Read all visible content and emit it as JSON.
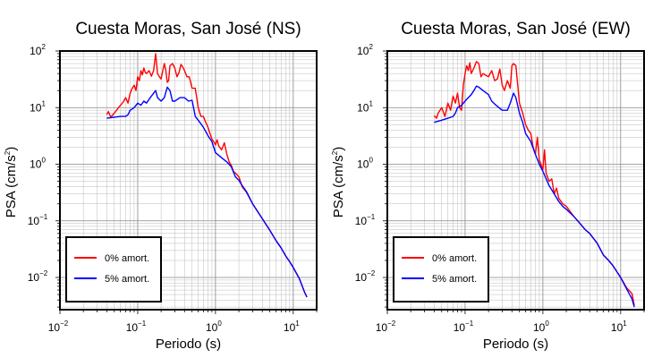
{
  "chart_data": [
    {
      "type": "line",
      "title": "Cuesta Moras, San José (NS)",
      "xlabel": "Periodo (s)",
      "ylabel_main": "PSA (cm/s",
      "ylabel_sup": "2",
      "ylabel_end": ")",
      "x_scale": "log",
      "y_scale": "log",
      "xlim": [
        0.01,
        20
      ],
      "ylim": [
        0.0027,
        100
      ],
      "x_ticks": [
        {
          "base": "10",
          "exp": "−2",
          "value": 0.01
        },
        {
          "base": "10",
          "exp": "−1",
          "value": 0.1
        },
        {
          "base": "10",
          "exp": "0",
          "value": 1
        },
        {
          "base": "10",
          "exp": "1",
          "value": 10
        }
      ],
      "y_ticks": [
        {
          "base": "10",
          "exp": "2",
          "value": 100
        },
        {
          "base": "10",
          "exp": "1",
          "value": 10
        },
        {
          "base": "10",
          "exp": "0",
          "value": 1
        },
        {
          "base": "10",
          "exp": "−1",
          "value": 0.1
        },
        {
          "base": "10",
          "exp": "−2",
          "value": 0.01
        }
      ],
      "grid": true,
      "legend_position": "bottom-left",
      "series": [
        {
          "name": "0% amort.",
          "color": "#ff0000",
          "points": [
            [
              0.04,
              7.5
            ],
            [
              0.042,
              8.5
            ],
            [
              0.045,
              6.8
            ],
            [
              0.05,
              8
            ],
            [
              0.055,
              9.5
            ],
            [
              0.06,
              11
            ],
            [
              0.065,
              12.5
            ],
            [
              0.07,
              15
            ],
            [
              0.075,
              12
            ],
            [
              0.08,
              18
            ],
            [
              0.085,
              22
            ],
            [
              0.09,
              25
            ],
            [
              0.095,
              20
            ],
            [
              0.1,
              35
            ],
            [
              0.105,
              30
            ],
            [
              0.11,
              45
            ],
            [
              0.115,
              38
            ],
            [
              0.12,
              50
            ],
            [
              0.125,
              42
            ],
            [
              0.13,
              40
            ],
            [
              0.14,
              45
            ],
            [
              0.15,
              36
            ],
            [
              0.16,
              45
            ],
            [
              0.17,
              90
            ],
            [
              0.18,
              40
            ],
            [
              0.19,
              35
            ],
            [
              0.2,
              32
            ],
            [
              0.21,
              45
            ],
            [
              0.22,
              60
            ],
            [
              0.23,
              45
            ],
            [
              0.24,
              28
            ],
            [
              0.25,
              30
            ],
            [
              0.26,
              55
            ],
            [
              0.28,
              60
            ],
            [
              0.3,
              50
            ],
            [
              0.32,
              35
            ],
            [
              0.34,
              42
            ],
            [
              0.36,
              58
            ],
            [
              0.38,
              52
            ],
            [
              0.4,
              45
            ],
            [
              0.43,
              35
            ],
            [
              0.46,
              35
            ],
            [
              0.5,
              22
            ],
            [
              0.55,
              22
            ],
            [
              0.6,
              10
            ],
            [
              0.65,
              7
            ],
            [
              0.7,
              7
            ],
            [
              0.75,
              5.5
            ],
            [
              0.8,
              4.5
            ],
            [
              0.85,
              3.5
            ],
            [
              0.9,
              2.8
            ],
            [
              1,
              2.2
            ],
            [
              1.05,
              2.7
            ],
            [
              1.1,
              2.1
            ],
            [
              1.2,
              1.8
            ],
            [
              1.3,
              2.4
            ],
            [
              1.4,
              1.5
            ],
            [
              1.5,
              1.1
            ],
            [
              1.6,
              0.95
            ],
            [
              1.7,
              0.75
            ],
            [
              1.8,
              0.7
            ],
            [
              2,
              0.6
            ],
            [
              2.2,
              0.4
            ],
            [
              2.5,
              0.32
            ],
            [
              3,
              0.2
            ],
            [
              4,
              0.11
            ],
            [
              5,
              0.068
            ],
            [
              6,
              0.045
            ],
            [
              7,
              0.033
            ],
            [
              8,
              0.024
            ],
            [
              9,
              0.019
            ],
            [
              10,
              0.015
            ],
            [
              12,
              0.0095
            ],
            [
              14,
              0.0055
            ],
            [
              15,
              0.0045
            ]
          ]
        },
        {
          "name": "5% amort.",
          "color": "#0000ff",
          "points": [
            [
              0.04,
              6.5
            ],
            [
              0.05,
              6.8
            ],
            [
              0.06,
              7
            ],
            [
              0.07,
              7
            ],
            [
              0.075,
              7.5
            ],
            [
              0.08,
              9
            ],
            [
              0.09,
              10
            ],
            [
              0.1,
              12
            ],
            [
              0.11,
              11
            ],
            [
              0.12,
              13
            ],
            [
              0.13,
              12
            ],
            [
              0.14,
              14
            ],
            [
              0.15,
              16
            ],
            [
              0.17,
              20
            ],
            [
              0.18,
              15
            ],
            [
              0.2,
              13
            ],
            [
              0.22,
              15
            ],
            [
              0.24,
              23
            ],
            [
              0.26,
              20
            ],
            [
              0.28,
              13
            ],
            [
              0.3,
              13
            ],
            [
              0.35,
              15
            ],
            [
              0.4,
              15
            ],
            [
              0.45,
              13
            ],
            [
              0.5,
              13.5
            ],
            [
              0.55,
              7
            ],
            [
              0.6,
              6
            ],
            [
              0.7,
              4.5
            ],
            [
              0.8,
              3.2
            ],
            [
              0.9,
              2.5
            ],
            [
              1,
              1.6
            ],
            [
              1.2,
              1.3
            ],
            [
              1.4,
              1.1
            ],
            [
              1.6,
              0.9
            ],
            [
              1.8,
              0.6
            ],
            [
              2,
              0.52
            ],
            [
              2.2,
              0.42
            ],
            [
              2.5,
              0.33
            ],
            [
              3,
              0.2
            ],
            [
              4,
              0.11
            ],
            [
              5,
              0.068
            ],
            [
              6,
              0.045
            ],
            [
              7,
              0.033
            ],
            [
              8,
              0.024
            ],
            [
              9,
              0.019
            ],
            [
              10,
              0.015
            ],
            [
              12,
              0.0095
            ],
            [
              14,
              0.0055
            ],
            [
              15,
              0.0045
            ]
          ]
        }
      ]
    },
    {
      "type": "line",
      "title": "Cuesta Moras, San José (EW)",
      "xlabel": "Periodo (s)",
      "ylabel_main": "PSA (cm/s",
      "ylabel_sup": "2",
      "ylabel_end": ")",
      "x_scale": "log",
      "y_scale": "log",
      "xlim": [
        0.01,
        20
      ],
      "ylim": [
        0.0027,
        100
      ],
      "x_ticks": [
        {
          "base": "10",
          "exp": "−2",
          "value": 0.01
        },
        {
          "base": "10",
          "exp": "−1",
          "value": 0.1
        },
        {
          "base": "10",
          "exp": "0",
          "value": 1
        },
        {
          "base": "10",
          "exp": "1",
          "value": 10
        }
      ],
      "y_ticks": [
        {
          "base": "10",
          "exp": "2",
          "value": 100
        },
        {
          "base": "10",
          "exp": "1",
          "value": 10
        },
        {
          "base": "10",
          "exp": "0",
          "value": 1
        },
        {
          "base": "10",
          "exp": "−1",
          "value": 0.1
        },
        {
          "base": "10",
          "exp": "−2",
          "value": 0.01
        }
      ],
      "grid": true,
      "legend_position": "bottom-left",
      "series": [
        {
          "name": "0% amort.",
          "color": "#ff0000",
          "points": [
            [
              0.04,
              7.2
            ],
            [
              0.043,
              6.5
            ],
            [
              0.045,
              8
            ],
            [
              0.05,
              10
            ],
            [
              0.055,
              7
            ],
            [
              0.06,
              12
            ],
            [
              0.065,
              9
            ],
            [
              0.07,
              16
            ],
            [
              0.075,
              12
            ],
            [
              0.08,
              18
            ],
            [
              0.085,
              10
            ],
            [
              0.09,
              9
            ],
            [
              0.095,
              25
            ],
            [
              0.1,
              40
            ],
            [
              0.105,
              55
            ],
            [
              0.11,
              45
            ],
            [
              0.115,
              62
            ],
            [
              0.12,
              40
            ],
            [
              0.13,
              50
            ],
            [
              0.14,
              65
            ],
            [
              0.15,
              60
            ],
            [
              0.16,
              35
            ],
            [
              0.17,
              40
            ],
            [
              0.18,
              38
            ],
            [
              0.2,
              35
            ],
            [
              0.22,
              45
            ],
            [
              0.24,
              30
            ],
            [
              0.26,
              32
            ],
            [
              0.28,
              48
            ],
            [
              0.3,
              25
            ],
            [
              0.32,
              20
            ],
            [
              0.35,
              30
            ],
            [
              0.38,
              22
            ],
            [
              0.4,
              55
            ],
            [
              0.42,
              60
            ],
            [
              0.45,
              55
            ],
            [
              0.5,
              12
            ],
            [
              0.55,
              8
            ],
            [
              0.6,
              5
            ],
            [
              0.65,
              4
            ],
            [
              0.7,
              3.5
            ],
            [
              0.75,
              2
            ],
            [
              0.8,
              1.5
            ],
            [
              0.85,
              3
            ],
            [
              0.9,
              1.2
            ],
            [
              1,
              0.8
            ],
            [
              1.05,
              1.8
            ],
            [
              1.1,
              0.7
            ],
            [
              1.2,
              0.5
            ],
            [
              1.3,
              0.55
            ],
            [
              1.4,
              0.3
            ],
            [
              1.5,
              0.38
            ],
            [
              1.6,
              0.25
            ],
            [
              1.8,
              0.2
            ],
            [
              2,
              0.18
            ],
            [
              2.5,
              0.12
            ],
            [
              3,
              0.09
            ],
            [
              3.5,
              0.07
            ],
            [
              4,
              0.06
            ],
            [
              5,
              0.04
            ],
            [
              6,
              0.025
            ],
            [
              7,
              0.02
            ],
            [
              8,
              0.016
            ],
            [
              10,
              0.01
            ],
            [
              12,
              0.0065
            ],
            [
              14,
              0.0052
            ],
            [
              15,
              0.0032
            ]
          ]
        },
        {
          "name": "5% amort.",
          "color": "#0000ff",
          "points": [
            [
              0.04,
              5.5
            ],
            [
              0.05,
              6
            ],
            [
              0.06,
              6.5
            ],
            [
              0.07,
              7
            ],
            [
              0.075,
              8
            ],
            [
              0.08,
              10
            ],
            [
              0.09,
              11
            ],
            [
              0.1,
              13
            ],
            [
              0.11,
              15
            ],
            [
              0.12,
              17
            ],
            [
              0.13,
              20
            ],
            [
              0.14,
              24
            ],
            [
              0.15,
              23
            ],
            [
              0.17,
              20
            ],
            [
              0.2,
              17
            ],
            [
              0.22,
              13
            ],
            [
              0.25,
              11
            ],
            [
              0.3,
              9
            ],
            [
              0.35,
              9
            ],
            [
              0.38,
              12
            ],
            [
              0.42,
              18
            ],
            [
              0.45,
              15
            ],
            [
              0.5,
              8
            ],
            [
              0.55,
              5.5
            ],
            [
              0.6,
              3.5
            ],
            [
              0.7,
              2.5
            ],
            [
              0.8,
              1.5
            ],
            [
              0.9,
              1
            ],
            [
              1,
              0.75
            ],
            [
              1.2,
              0.42
            ],
            [
              1.4,
              0.3
            ],
            [
              1.6,
              0.22
            ],
            [
              1.8,
              0.18
            ],
            [
              2,
              0.16
            ],
            [
              2.5,
              0.12
            ],
            [
              3,
              0.09
            ],
            [
              3.5,
              0.07
            ],
            [
              4,
              0.06
            ],
            [
              5,
              0.04
            ],
            [
              6,
              0.025
            ],
            [
              7,
              0.02
            ],
            [
              8,
              0.016
            ],
            [
              10,
              0.01
            ],
            [
              12,
              0.0062
            ],
            [
              14,
              0.0042
            ],
            [
              15,
              0.003
            ]
          ]
        }
      ]
    }
  ]
}
